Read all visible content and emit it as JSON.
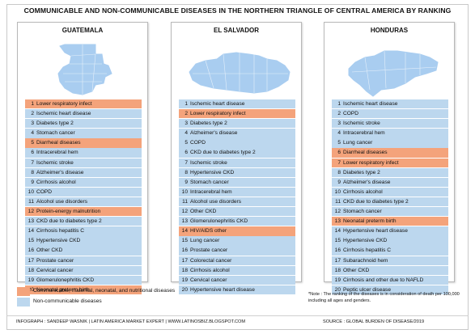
{
  "title": "COMMUNICABLE AND NON-COMMUNICABLE DISEASES IN THE NORTHERN TRIANGLE OF CENTRAL AMERICA BY RANKING",
  "colors": {
    "communicable": "#f4a37b",
    "non_communicable": "#bcd7ee",
    "map_fill": "#a9cdf0",
    "map_border": "#ffffff"
  },
  "countries": [
    {
      "name": "GUATEMALA",
      "map_icon": "guatemala-map",
      "diseases": [
        {
          "rank": "1",
          "name": "Lower respiratory infect",
          "category": "communicable"
        },
        {
          "rank": "2",
          "name": "Ischemic heart disease",
          "category": "non_communicable"
        },
        {
          "rank": "3",
          "name": "Diabetes type 2",
          "category": "non_communicable"
        },
        {
          "rank": "4",
          "name": "Stomach cancer",
          "category": "non_communicable"
        },
        {
          "rank": "5",
          "name": "Diarrheal diseases",
          "category": "communicable"
        },
        {
          "rank": "6",
          "name": "Intracerebral hem",
          "category": "non_communicable"
        },
        {
          "rank": "7",
          "name": "Ischemic stroke",
          "category": "non_communicable"
        },
        {
          "rank": "8",
          "name": "Alzheimer's disease",
          "category": "non_communicable"
        },
        {
          "rank": "9",
          "name": "Cirrhosis alcohol",
          "category": "non_communicable"
        },
        {
          "rank": "10",
          "name": "COPD",
          "category": "non_communicable"
        },
        {
          "rank": "11",
          "name": "Alcohol use disorders",
          "category": "non_communicable"
        },
        {
          "rank": "12",
          "name": "Protein-energy malnutrition",
          "category": "communicable"
        },
        {
          "rank": "13",
          "name": "CKD due to diabetes type 2",
          "category": "non_communicable"
        },
        {
          "rank": "14",
          "name": "Cirrhosis hepatitis C",
          "category": "non_communicable"
        },
        {
          "rank": "15",
          "name": "Hypertensive CKD",
          "category": "non_communicable"
        },
        {
          "rank": "16",
          "name": "Other CKD",
          "category": "non_communicable"
        },
        {
          "rank": "17",
          "name": "Prostate cancer",
          "category": "non_communicable"
        },
        {
          "rank": "18",
          "name": "Cervical cancer",
          "category": "non_communicable"
        },
        {
          "rank": "19",
          "name": "Glomerulonephritis CKD",
          "category": "non_communicable"
        },
        {
          "rank": "20",
          "name": "Neonatal preterm birth",
          "category": "communicable"
        }
      ]
    },
    {
      "name": "EL SALVADOR",
      "map_icon": "el-salvador-map",
      "diseases": [
        {
          "rank": "1",
          "name": "Ischemic heart disease",
          "category": "non_communicable"
        },
        {
          "rank": "2",
          "name": "Lower respiratory infect",
          "category": "communicable"
        },
        {
          "rank": "3",
          "name": "Diabetes type 2",
          "category": "non_communicable"
        },
        {
          "rank": "4",
          "name": "Alzheimer's disease",
          "category": "non_communicable"
        },
        {
          "rank": "5",
          "name": "COPD",
          "category": "non_communicable"
        },
        {
          "rank": "6",
          "name": "CKD due to diabetes type 2",
          "category": "non_communicable"
        },
        {
          "rank": "7",
          "name": "Ischemic stroke",
          "category": "non_communicable"
        },
        {
          "rank": "8",
          "name": "Hypertensive CKD",
          "category": "non_communicable"
        },
        {
          "rank": "9",
          "name": "Stomach cancer",
          "category": "non_communicable"
        },
        {
          "rank": "10",
          "name": "Intracerebral hem",
          "category": "non_communicable"
        },
        {
          "rank": "11",
          "name": "Alcohol use disorders",
          "category": "non_communicable"
        },
        {
          "rank": "12",
          "name": "Other CKD",
          "category": "non_communicable"
        },
        {
          "rank": "13",
          "name": "Glomerulonephritis CKD",
          "category": "non_communicable"
        },
        {
          "rank": "14",
          "name": "HIV/AIDS other",
          "category": "communicable"
        },
        {
          "rank": "15",
          "name": "Lung cancer",
          "category": "non_communicable"
        },
        {
          "rank": "16",
          "name": "Prostate cancer",
          "category": "non_communicable"
        },
        {
          "rank": "17",
          "name": "Colorectal cancer",
          "category": "non_communicable"
        },
        {
          "rank": "18",
          "name": "Cirrhosis alcohol",
          "category": "non_communicable"
        },
        {
          "rank": "19",
          "name": "Cervical cancer",
          "category": "non_communicable"
        },
        {
          "rank": "20",
          "name": "Hypertensive heart disease",
          "category": "non_communicable"
        }
      ]
    },
    {
      "name": "HONDURAS",
      "map_icon": "honduras-map",
      "diseases": [
        {
          "rank": "1",
          "name": "Ischemic heart disease",
          "category": "non_communicable"
        },
        {
          "rank": "2",
          "name": "COPD",
          "category": "non_communicable"
        },
        {
          "rank": "3",
          "name": "Ischemic stroke",
          "category": "non_communicable"
        },
        {
          "rank": "4",
          "name": "Intracerebral hem",
          "category": "non_communicable"
        },
        {
          "rank": "5",
          "name": "Lung cancer",
          "category": "non_communicable"
        },
        {
          "rank": "6",
          "name": "Diarrheal diseases",
          "category": "communicable"
        },
        {
          "rank": "7",
          "name": "Lower respiratory infect",
          "category": "communicable"
        },
        {
          "rank": "8",
          "name": "Diabetes type 2",
          "category": "non_communicable"
        },
        {
          "rank": "9",
          "name": "Alzheimer's disease",
          "category": "non_communicable"
        },
        {
          "rank": "10",
          "name": "Cirrhosis alcohol",
          "category": "non_communicable"
        },
        {
          "rank": "11",
          "name": "CKD due to diabetes type 2",
          "category": "non_communicable"
        },
        {
          "rank": "12",
          "name": "Stomach cancer",
          "category": "non_communicable"
        },
        {
          "rank": "13",
          "name": "Neonatal preterm birth",
          "category": "communicable"
        },
        {
          "rank": "14",
          "name": "Hypertensive heart disease",
          "category": "non_communicable"
        },
        {
          "rank": "15",
          "name": "Hypertensive CKD",
          "category": "non_communicable"
        },
        {
          "rank": "16",
          "name": "Cirrhosis hepatitis C",
          "category": "non_communicable"
        },
        {
          "rank": "17",
          "name": "Subarachnoid hem",
          "category": "non_communicable"
        },
        {
          "rank": "18",
          "name": "Other CKD",
          "category": "non_communicable"
        },
        {
          "rank": "19",
          "name": "Cirrhosis and other due to NAFLD",
          "category": "non_communicable"
        },
        {
          "rank": "20",
          "name": "Peptic ulcer disease",
          "category": "non_communicable"
        }
      ]
    }
  ],
  "legend": [
    {
      "label": "Communicable, maternal, neonatal, and nutritional diseases",
      "category": "communicable"
    },
    {
      "label": "Non-communicable diseases",
      "category": "non_communicable"
    }
  ],
  "note": "*Note : The ranking of the diseases is in consideration of death per 100,000 including all ages and genders.",
  "footer": {
    "credit": "INFOGRAPH : SANDEEP WASNIK | LATIN AMERICA MARKET EXPERT | WWW.LATINOSBIZ.BLOGSPOT.COM",
    "source": "SOURCE : GLOBAL BURDEN OF DISEASE/2019"
  }
}
